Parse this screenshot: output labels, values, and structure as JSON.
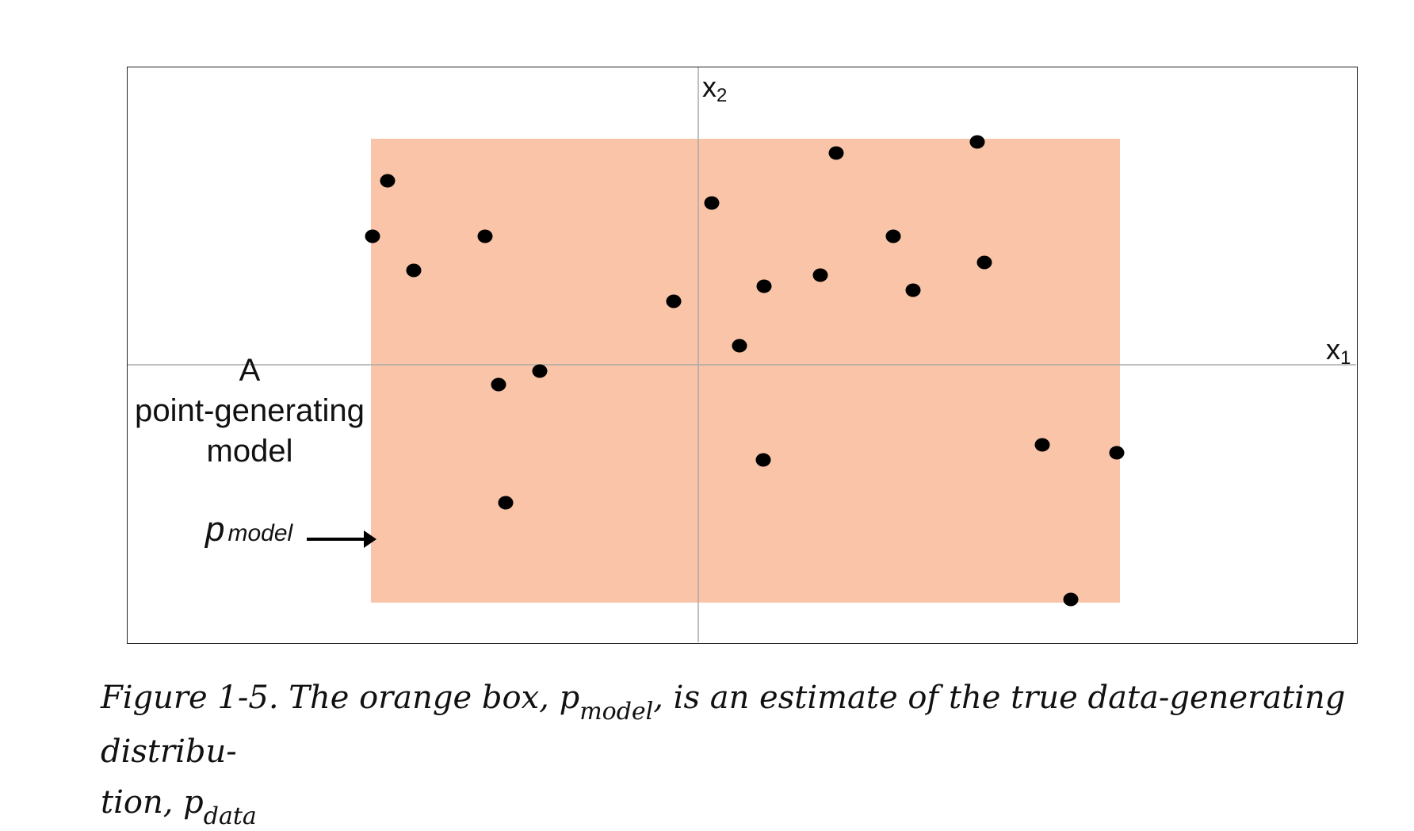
{
  "diagram": {
    "axis_x_label": "x",
    "axis_x_subscript": "1",
    "axis_y_label": "x",
    "axis_y_subscript": "2",
    "model_label_line1": "A",
    "model_label_line2": "point-generating",
    "model_label_line3": "model",
    "model_symbol": "p",
    "model_symbol_subscript": "model",
    "box_color": "#F9C4A7",
    "point_color": "#000000",
    "axis_color": "#aaaaaa",
    "x_range": [
      -720,
      830
    ],
    "y_range": [
      -350,
      375
    ],
    "box": {
      "x_min": -413,
      "x_max": 532,
      "y_min": -300,
      "y_max": 285
    },
    "points": [
      {
        "x": -392,
        "y": 232
      },
      {
        "x": -411,
        "y": 162
      },
      {
        "x": -359,
        "y": 119
      },
      {
        "x": -269,
        "y": 162
      },
      {
        "x": -252,
        "y": -25
      },
      {
        "x": -200,
        "y": -8
      },
      {
        "x": -243,
        "y": -174
      },
      {
        "x": -31,
        "y": 80
      },
      {
        "x": 17,
        "y": 204
      },
      {
        "x": 52,
        "y": 24
      },
      {
        "x": 83,
        "y": 99
      },
      {
        "x": 82,
        "y": -120
      },
      {
        "x": 154,
        "y": 113
      },
      {
        "x": 174,
        "y": 267
      },
      {
        "x": 246,
        "y": 162
      },
      {
        "x": 271,
        "y": 94
      },
      {
        "x": 352,
        "y": 281
      },
      {
        "x": 361,
        "y": 129
      },
      {
        "x": 434,
        "y": -101
      },
      {
        "x": 528,
        "y": -111
      },
      {
        "x": 470,
        "y": -296
      }
    ]
  },
  "caption": {
    "part1": "Figure 1-5. The orange box, p",
    "sub1": "model",
    "part2": ", is an estimate of the true data-generating distribu-",
    "part3": "tion, p",
    "sub2": "data"
  }
}
